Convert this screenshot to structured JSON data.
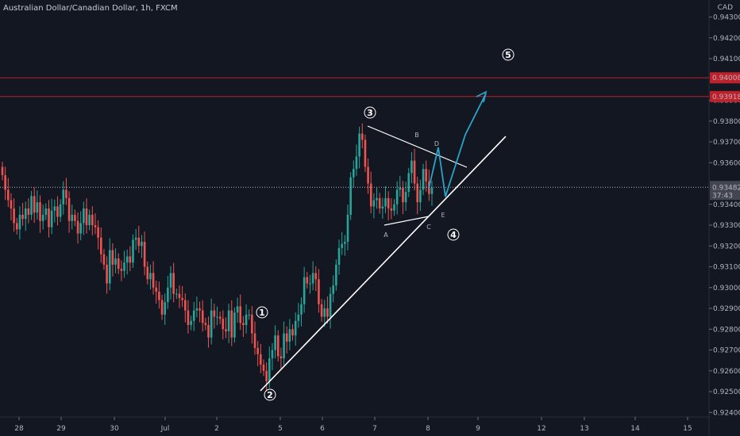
{
  "header": {
    "title": "Australian Dollar/Canadian Dollar, 1h, FXCM",
    "currency": "CAD"
  },
  "chart_data": {
    "type": "candlestick",
    "instrument": "Australian Dollar/Canadian Dollar",
    "timeframe": "1h",
    "source": "FXCM",
    "y_axis": {
      "min": 0.9236,
      "max": 0.9452,
      "ticks": [
        0.924,
        0.925,
        0.926,
        0.927,
        0.928,
        0.929,
        0.93,
        0.931,
        0.932,
        0.933,
        0.934,
        0.936,
        0.937,
        0.938,
        0.939,
        0.941,
        0.942,
        0.943
      ]
    },
    "x_axis": {
      "labels": [
        "28",
        "29",
        "30",
        "Jul",
        "2",
        "5",
        "6",
        "7",
        "8",
        "9",
        "12",
        "13",
        "14",
        "15"
      ]
    },
    "price_tag": {
      "value": "0.93482",
      "countdown": "37:43"
    },
    "horizontal_levels": [
      {
        "value": "0.94008",
        "color": "#c0202a"
      },
      {
        "value": "0.93918",
        "color": "#c0202a"
      }
    ],
    "wave_labels": [
      "1",
      "2",
      "3",
      "4",
      "5"
    ],
    "triangle_labels": [
      "A",
      "B",
      "C",
      "D",
      "E"
    ],
    "colors": {
      "up": "#26a69a",
      "down": "#ef5350",
      "projection": "#29a3c7",
      "trendline": "#ffffff",
      "background": "#131722"
    },
    "candles_close": [
      0.9354,
      0.9347,
      0.9342,
      0.9338,
      0.9331,
      0.9328,
      0.9335,
      0.9333,
      0.9338,
      0.9335,
      0.9344,
      0.9336,
      0.9341,
      0.9332,
      0.9335,
      0.9338,
      0.9329,
      0.9337,
      0.9339,
      0.9334,
      0.934,
      0.9347,
      0.9343,
      0.9332,
      0.9335,
      0.9332,
      0.9326,
      0.9331,
      0.9338,
      0.933,
      0.9335,
      0.933,
      0.9329,
      0.9324,
      0.9316,
      0.9311,
      0.9302,
      0.9318,
      0.9311,
      0.9314,
      0.9309,
      0.9308,
      0.9312,
      0.9315,
      0.9312,
      0.9323,
      0.9324,
      0.932,
      0.9322,
      0.931,
      0.9304,
      0.9307,
      0.93,
      0.9298,
      0.9294,
      0.9287,
      0.9293,
      0.93,
      0.9307,
      0.9297,
      0.9297,
      0.9295,
      0.9294,
      0.9289,
      0.9282,
      0.9284,
      0.9289,
      0.929,
      0.9289,
      0.9283,
      0.9282,
      0.9276,
      0.9289,
      0.9286,
      0.9286,
      0.9285,
      0.928,
      0.9279,
      0.9289,
      0.9276,
      0.9288,
      0.9291,
      0.9283,
      0.9282,
      0.9287,
      0.9287,
      0.9278,
      0.9271,
      0.9268,
      0.9263,
      0.926,
      0.9255,
      0.9266,
      0.927,
      0.9277,
      0.9267,
      0.9266,
      0.9278,
      0.9274,
      0.928,
      0.9277,
      0.9284,
      0.9287,
      0.9292,
      0.9305,
      0.9302,
      0.9302,
      0.9307,
      0.9304,
      0.9292,
      0.9286,
      0.929,
      0.9286,
      0.9297,
      0.9301,
      0.9311,
      0.9319,
      0.9321,
      0.9322,
      0.9335,
      0.9353,
      0.9357,
      0.9363,
      0.9374,
      0.9371,
      0.9358,
      0.935,
      0.9339,
      0.9342,
      0.9343,
      0.9338,
      0.9339,
      0.9343,
      0.9338,
      0.9337,
      0.934,
      0.9347,
      0.9348,
      0.9341,
      0.9346,
      0.9355,
      0.9361,
      0.935,
      0.9341,
      0.9347,
      0.9357,
      0.9351,
      0.9345,
      0.9348
    ]
  }
}
